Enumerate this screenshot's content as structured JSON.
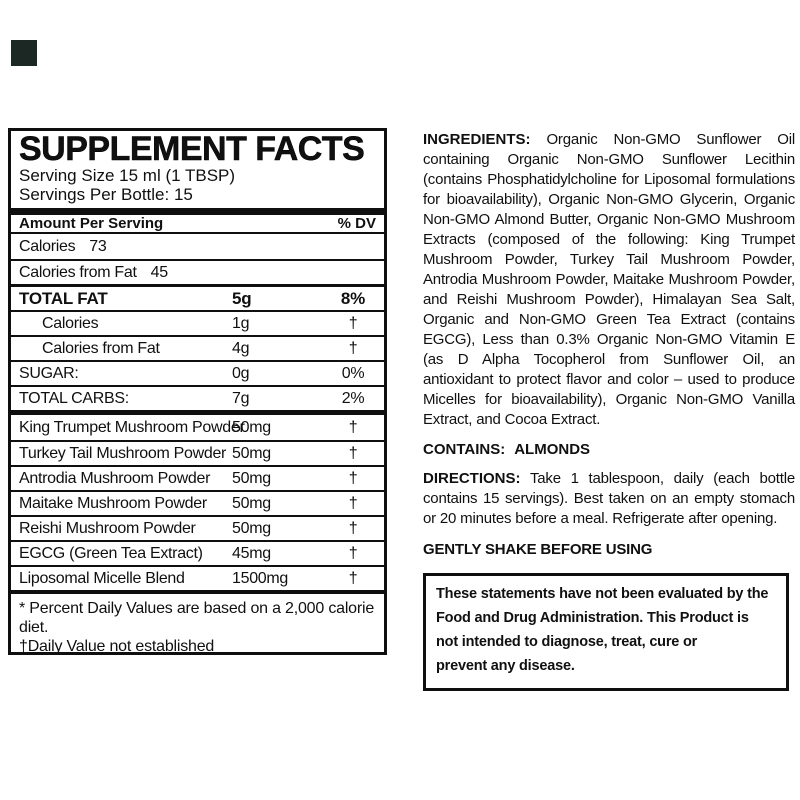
{
  "swatch_color": "#1b2823",
  "panel": {
    "title": "SUPPLEMENT FACTS",
    "serving_size": "Serving Size 15 ml (1 TBSP)",
    "servings_per_bottle": "Servings Per Bottle: 15",
    "header": {
      "amount_label": "Amount Per Serving",
      "dv_label": "% DV"
    },
    "rows": [
      {
        "label": "Calories",
        "inline_value": "73",
        "style": "plain-first"
      },
      {
        "label": "Calories from Fat",
        "inline_value": "45",
        "style": "plain"
      },
      {
        "label": "TOTAL FAT",
        "amount": "5g",
        "dv": "8%",
        "style": "bold-fat-top"
      },
      {
        "label": "Calories",
        "amount": "1g",
        "dv": "†",
        "style": "indent"
      },
      {
        "label": "Calories from Fat",
        "amount": "4g",
        "dv": "†",
        "style": "indent"
      },
      {
        "label": "SUGAR:",
        "amount": "0g",
        "dv": "0%",
        "style": "plain"
      },
      {
        "label": "TOTAL CARBS:",
        "amount": "7g",
        "dv": "2%",
        "style": "plain"
      },
      {
        "label": "King Trumpet Mushroom Powder",
        "amount": "50mg",
        "dv": "†",
        "style": "section-start"
      },
      {
        "label": "Turkey Tail Mushroom Powder",
        "amount": "50mg",
        "dv": "†",
        "style": "plain"
      },
      {
        "label": "Antrodia Mushroom Powder",
        "amount": "50mg",
        "dv": "†",
        "style": "plain"
      },
      {
        "label": "Maitake Mushroom Powder",
        "amount": "50mg",
        "dv": "†",
        "style": "plain"
      },
      {
        "label": "Reishi Mushroom Powder",
        "amount": "50mg",
        "dv": "†",
        "style": "plain"
      },
      {
        "label": "EGCG (Green Tea Extract)",
        "amount": "45mg",
        "dv": "†",
        "style": "plain"
      },
      {
        "label": "Liposomal Micelle Blend",
        "amount": "1500mg",
        "dv": "†",
        "style": "plain"
      }
    ],
    "footnotes": [
      "* Percent Daily Values are based on a 2,000 calorie diet.",
      "†Daily Value not established"
    ]
  },
  "right": {
    "ingredients": {
      "label": "INGREDIENTS:",
      "text": "Organic Non-GMO Sunflower Oil containing Organic Non-GMO Sunflower Lecithin (contains Phosphatidylcholine for Liposomal formulations for bioavailability), Organic Non-GMO Glycerin, Organic Non-GMO Almond Butter, Organic Non-GMO Mushroom Extracts (composed of the following: King Trumpet Mushroom Powder, Turkey Tail Mushroom Powder, Antrodia Mushroom Powder, Maitake Mushroom Powder, and Reishi Mushroom Powder), Himalayan Sea Salt, Organic and Non-GMO Green Tea Extract (contains EGCG), Less than 0.3% Organic Non-GMO Vitamin E (as D Alpha Tocopherol from Sunflower Oil, an antioxidant to protect flavor and color – used to produce Micelles for bioavailability), Organic Non-GMO Vanilla Extract, and Cocoa Extract."
    },
    "contains": {
      "label": "CONTAINS:",
      "value": "ALMONDS"
    },
    "directions": {
      "label": "DIRECTIONS:",
      "text": "Take 1 tablespoon, daily (each bottle contains 15 servings). Best taken on an empty stomach or 20 minutes before a meal. Refrigerate after opening."
    },
    "shake_notice": "GENTLY SHAKE BEFORE USING",
    "disclaimer": "These statements have not been evaluated by the\nFood and Drug Administration.  This Product is\nnot intended to diagnose, treat, cure or\nprevent any disease."
  }
}
